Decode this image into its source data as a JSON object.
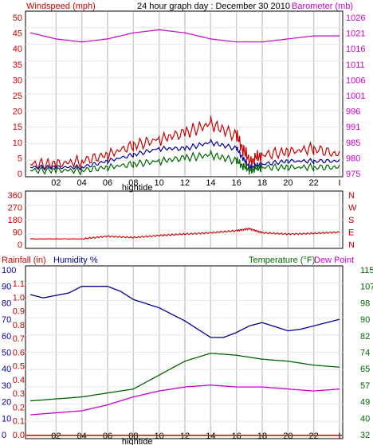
{
  "header": {
    "wind_label": "Windspeed (mph)",
    "title": "24 hour graph day : December 30 2010",
    "baro_label": "Barometer (mb)"
  },
  "colors": {
    "red": "#cc0000",
    "blue": "#000099",
    "green": "#006600",
    "magenta": "#cc00cc",
    "grid": "#cccccc",
    "axis": "#000000"
  },
  "chart_data": [
    {
      "type": "line",
      "name": "wind-barometer",
      "x_ticks": [
        "02",
        "04",
        "06",
        "08",
        "10",
        "12",
        "14",
        "16",
        "18",
        "20",
        "22",
        "I"
      ],
      "marker_label": "hightide",
      "left_axis": {
        "label": "Windspeed (mph)",
        "ticks": [
          "50",
          "45",
          "40",
          "35",
          "30",
          "25",
          "20",
          "15",
          "10",
          "5",
          "0"
        ],
        "range": [
          0,
          50
        ]
      },
      "right_axis": {
        "label": "Barometer (mb)",
        "ticks": [
          "1026",
          "1021",
          "1016",
          "1011",
          "1006",
          "1001",
          "996",
          "991",
          "985",
          "980",
          "975"
        ],
        "range": [
          975,
          1026
        ]
      },
      "series": [
        {
          "color": "magenta",
          "axis": "right",
          "x": [
            0,
            2,
            4,
            6,
            8,
            10,
            12,
            14,
            16,
            18,
            20,
            22,
            24
          ],
          "y": [
            1021,
            1019,
            1018,
            1019,
            1021,
            1022,
            1021,
            1019,
            1018,
            1018,
            1019,
            1020,
            1020
          ]
        },
        {
          "color": "red",
          "axis": "left",
          "x": [
            0,
            2,
            4,
            6,
            8,
            10,
            12,
            14,
            16,
            17,
            18,
            20,
            22,
            24
          ],
          "y": [
            3,
            3,
            4,
            6,
            9,
            11,
            13,
            16,
            12,
            4,
            6,
            7,
            8,
            6
          ]
        },
        {
          "color": "blue",
          "axis": "left",
          "x": [
            0,
            2,
            4,
            6,
            8,
            10,
            12,
            14,
            16,
            17,
            18,
            20,
            22,
            24
          ],
          "y": [
            2,
            2,
            2,
            4,
            6,
            8,
            8,
            10,
            8,
            2,
            3,
            4,
            4,
            4
          ]
        },
        {
          "color": "green",
          "axis": "left",
          "x": [
            0,
            2,
            4,
            6,
            8,
            10,
            12,
            14,
            16,
            17,
            18,
            20,
            22,
            24
          ],
          "y": [
            1,
            1,
            1,
            2,
            3,
            4,
            5,
            6,
            4,
            1,
            2,
            2,
            2,
            2
          ]
        }
      ]
    },
    {
      "type": "line",
      "name": "wind-direction",
      "x_ticks": [],
      "left_axis": {
        "label": "",
        "ticks": [
          "360",
          "270",
          "180",
          "90",
          "0"
        ],
        "range": [
          0,
          360
        ]
      },
      "right_axis": {
        "label": "",
        "ticks": [
          "N",
          "W",
          "S",
          "E",
          "N"
        ]
      },
      "series": [
        {
          "color": "red",
          "axis": "left",
          "x": [
            0,
            4,
            6,
            8,
            10,
            12,
            14,
            16,
            17,
            18,
            20,
            22,
            24
          ],
          "y": [
            40,
            40,
            60,
            50,
            65,
            75,
            85,
            100,
            115,
            85,
            75,
            80,
            90
          ]
        }
      ]
    },
    {
      "type": "line",
      "name": "rain-humidity-temperature",
      "labels": {
        "rain": "Rainfall (in)",
        "humidity": "Humidity %",
        "temperature": "Temperature (°F)",
        "dew": "Dew Point"
      },
      "x_ticks": [
        "02",
        "04",
        "06",
        "08",
        "10",
        "12",
        "14",
        "16",
        "18",
        "20",
        "22",
        "I"
      ],
      "marker_label": "hightide",
      "left_axis_humidity": {
        "ticks": [
          "100",
          "90",
          "80",
          "70",
          "60",
          "50",
          "40",
          "30",
          "20",
          "10",
          "0"
        ],
        "range": [
          0,
          100
        ]
      },
      "left_axis_rain": {
        "ticks": [
          "1.1",
          "1.0",
          "0.9",
          "0.8",
          "0.7",
          "0.6",
          "0.5",
          "0.4",
          "0.3",
          "0.2",
          "0.1",
          "0.0"
        ]
      },
      "right_axis": {
        "ticks": [
          "115",
          "107",
          "98",
          "90",
          "82",
          "74",
          "65",
          "57",
          "49",
          "40",
          "32"
        ],
        "range": [
          32,
          115
        ]
      },
      "series": [
        {
          "color": "blue",
          "axis": "left",
          "x": [
            0,
            1,
            3,
            4,
            6,
            7,
            8,
            10,
            12,
            13,
            14,
            15,
            16,
            17,
            18,
            20,
            21,
            22,
            24
          ],
          "y": [
            85,
            83,
            86,
            90,
            90,
            87,
            82,
            77,
            69,
            64,
            59,
            59,
            62,
            66,
            68,
            63,
            64,
            66,
            70
          ]
        },
        {
          "color": "green",
          "axis": "right",
          "x": [
            0,
            2,
            4,
            6,
            8,
            10,
            12,
            14,
            16,
            18,
            20,
            22,
            24
          ],
          "y": [
            49,
            50,
            51,
            53,
            55,
            62,
            69,
            73,
            72,
            70,
            69,
            67,
            66
          ]
        },
        {
          "color": "magenta",
          "axis": "right",
          "x": [
            0,
            2,
            4,
            6,
            8,
            10,
            12,
            14,
            16,
            18,
            20,
            22,
            24
          ],
          "y": [
            42,
            43,
            44,
            47,
            51,
            54,
            56,
            57,
            56,
            56,
            55,
            54,
            55
          ]
        },
        {
          "color": "red",
          "axis": "rain",
          "x": [
            0,
            24
          ],
          "y": [
            0,
            0
          ]
        }
      ]
    }
  ]
}
